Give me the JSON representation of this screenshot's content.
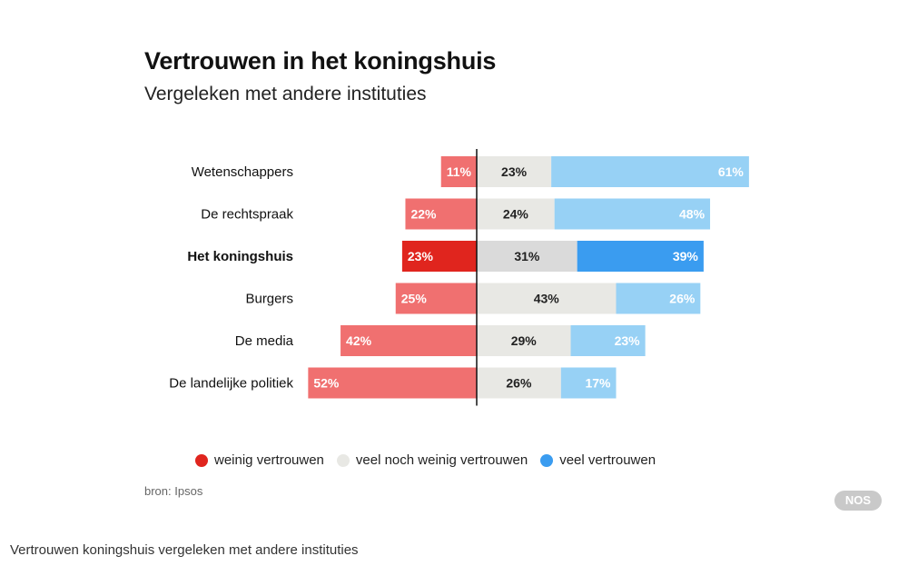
{
  "title": "Vertrouwen in het koningshuis",
  "subtitle": "Vergeleken met andere instituties",
  "source": "bron: Ipsos",
  "brand_badge": "NOS",
  "caption": "Vertrouwen koningshuis vergeleken met andere instituties",
  "colors": {
    "weinig": "#f07070",
    "weinig_highlight": "#e0251e",
    "neutraal": "#e8e8e4",
    "neutraal_highlight": "#dadada",
    "veel": "#97d1f5",
    "veel_highlight": "#3a9cf0"
  },
  "legend": [
    {
      "label": "weinig vertrouwen",
      "color": "#e0251e"
    },
    {
      "label": "veel noch weinig vertrouwen",
      "color": "#e8e8e4"
    },
    {
      "label": "veel vertrouwen",
      "color": "#3a9cf0"
    }
  ],
  "chart_data": {
    "type": "bar",
    "orientation": "horizontal-diverging",
    "title": "Vertrouwen in het koningshuis",
    "subtitle": "Vergeleken met andere instituties",
    "categories": [
      "Wetenschappers",
      "De rechtspraak",
      "Het koningshuis",
      "Burgers",
      "De media",
      "De landelijke politiek"
    ],
    "highlight_category": "Het koningshuis",
    "series": [
      {
        "name": "weinig vertrouwen",
        "values": [
          11,
          22,
          23,
          25,
          42,
          52
        ],
        "labels": [
          "11%",
          "22%",
          "23%",
          "25%",
          "42%",
          "52%"
        ]
      },
      {
        "name": "veel noch weinig vertrouwen",
        "values": [
          23,
          24,
          31,
          43,
          29,
          26
        ],
        "labels": [
          "23%",
          "24%",
          "31%",
          "43%",
          "29%",
          "26%"
        ]
      },
      {
        "name": "veel vertrouwen",
        "values": [
          61,
          48,
          39,
          26,
          23,
          17
        ],
        "labels": [
          "61%",
          "48%",
          "39%",
          "26%",
          "23%",
          "17%"
        ]
      }
    ],
    "unit": "%",
    "legend_position": "bottom",
    "grid": false
  }
}
